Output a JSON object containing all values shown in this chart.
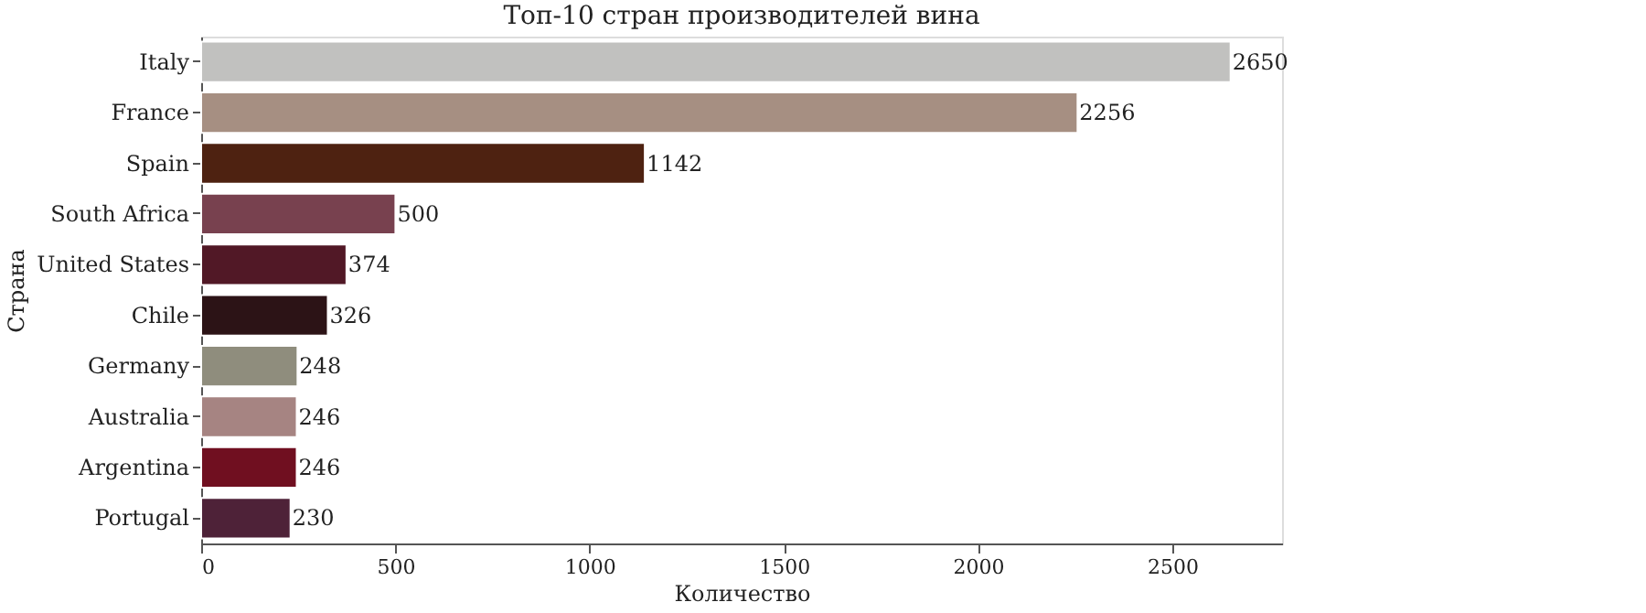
{
  "chart_data": {
    "type": "bar",
    "orientation": "horizontal",
    "title": "Топ-10 стран производителей вина",
    "xlabel": "Количество",
    "ylabel": "Страна",
    "categories": [
      "Italy",
      "France",
      "Spain",
      "South Africa",
      "United States",
      "Chile",
      "Germany",
      "Australia",
      "Argentina",
      "Portugal"
    ],
    "values": [
      2650,
      2256,
      1142,
      500,
      374,
      326,
      248,
      246,
      246,
      230
    ],
    "colors": [
      "#c1c1bf",
      "#a68f82",
      "#4e2211",
      "#78414f",
      "#511826",
      "#2c1316",
      "#8f8d7d",
      "#a68482",
      "#700f20",
      "#4e2238"
    ],
    "xlim": [
      0,
      2782.5
    ],
    "xticks": [
      0,
      500,
      1000,
      1500,
      2000,
      2500
    ],
    "data_labels": true,
    "grid": false
  }
}
